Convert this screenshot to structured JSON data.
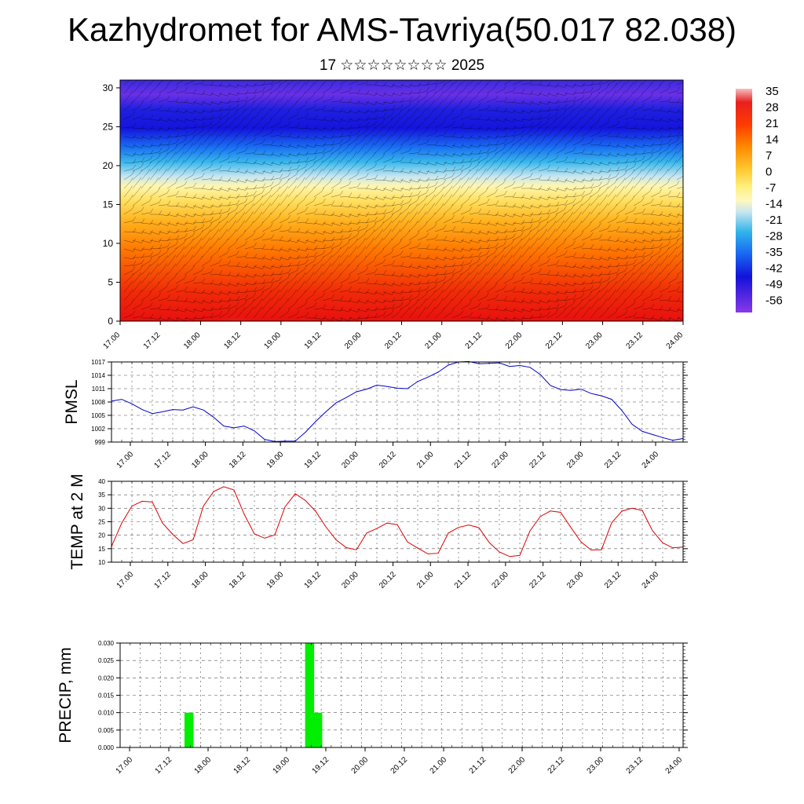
{
  "header": {
    "title": "Kazhydromet for AMS-Tavriya(50.017 82.038)",
    "subtitle": "17 ☆☆☆☆☆☆☆☆ 2025"
  },
  "time_ticks": [
    "17.00",
    "17.12",
    "18.00",
    "18.12",
    "19.00",
    "19.12",
    "20.00",
    "20.12",
    "21.00",
    "21.12",
    "22.00",
    "22.12",
    "23.00",
    "23.12",
    "24.00"
  ],
  "chart_data": [
    {
      "type": "heatmap",
      "title": "",
      "x_ticks": [
        "17.00",
        "17.12",
        "18.00",
        "18.12",
        "19.00",
        "19.12",
        "20.00",
        "20.12",
        "21.00",
        "21.12",
        "22.00",
        "22.12",
        "23.00",
        "23.12",
        "24.00"
      ],
      "y_ticks": [
        "0",
        "5",
        "10",
        "15",
        "20",
        "25",
        "30"
      ],
      "ylim": [
        0,
        31
      ],
      "colorbar": {
        "labels": [
          "35",
          "28",
          "21",
          "14",
          "7",
          "0",
          "-7",
          "-14",
          "-21",
          "-28",
          "-35",
          "-42",
          "-49",
          "-56"
        ],
        "colors": [
          "#f4b8b8",
          "#e81010",
          "#ff5000",
          "#ff9a00",
          "#ffd040",
          "#fff5a0",
          "#c8e8f0",
          "#2ab0e8",
          "#1a5ff0",
          "#1010d8",
          "#6a2ae8",
          "#8a3ae8"
        ]
      }
    },
    {
      "type": "line",
      "ylabel": "PMSL",
      "y_ticks": [
        "999",
        "1002",
        "1005",
        "1008",
        "1011",
        "1014",
        "1017"
      ],
      "ylim": [
        999,
        1017
      ],
      "color": "#0000cc",
      "values": [
        1008.2,
        1008.6,
        1007.6,
        1006.3,
        1005.4,
        1005.8,
        1006.3,
        1006.2,
        1006.9,
        1006.2,
        1004.6,
        1002.6,
        1002.2,
        1002.6,
        1001.5,
        999.6,
        999.1,
        999.2,
        999.2,
        1001.2,
        1003.6,
        1005.8,
        1007.8,
        1009.0,
        1010.3,
        1010.9,
        1011.8,
        1011.5,
        1011.1,
        1011.0,
        1012.6,
        1013.6,
        1014.7,
        1016.3,
        1017.0,
        1017.1,
        1016.6,
        1016.7,
        1016.8,
        1016.0,
        1016.2,
        1015.8,
        1014.2,
        1011.7,
        1010.8,
        1010.6,
        1010.9,
        1009.9,
        1009.4,
        1008.6,
        1006.1,
        1003.0,
        1001.4,
        1000.7,
        1000.0,
        999.4,
        999.8
      ]
    },
    {
      "type": "line",
      "ylabel": "TEMP at 2 M",
      "y_ticks": [
        "10",
        "15",
        "20",
        "25",
        "30",
        "35",
        "40"
      ],
      "ylim": [
        10,
        40
      ],
      "color": "#dd0000",
      "values": [
        15.8,
        24.5,
        30.8,
        32.6,
        32.3,
        24.5,
        20.3,
        16.9,
        18.3,
        30.8,
        36.2,
        38.0,
        36.8,
        27.8,
        20.5,
        18.9,
        20.1,
        30.5,
        35.4,
        32.9,
        28.9,
        23.1,
        18.3,
        15.4,
        14.6,
        20.8,
        22.5,
        24.5,
        23.9,
        17.5,
        15.2,
        13.1,
        13.3,
        20.8,
        22.9,
        23.8,
        22.8,
        17.3,
        13.8,
        12.1,
        12.5,
        21.6,
        26.9,
        29.0,
        28.5,
        22.9,
        17.5,
        14.5,
        14.6,
        24.6,
        28.9,
        30.0,
        29.2,
        21.7,
        17.2,
        15.3,
        15.6
      ]
    },
    {
      "type": "bar",
      "ylabel": "PRECIP, mm",
      "y_ticks": [
        "0.000",
        "0.005",
        "0.010",
        "0.015",
        "0.020",
        "0.025",
        "0.030"
      ],
      "ylim": [
        0,
        0.03
      ],
      "color": "#00ee00",
      "bars": [
        {
          "x": 17.8,
          "value": 0.01
        },
        {
          "x": 19.3,
          "value": 0.03
        },
        {
          "x": 19.4,
          "value": 0.01
        }
      ]
    }
  ]
}
